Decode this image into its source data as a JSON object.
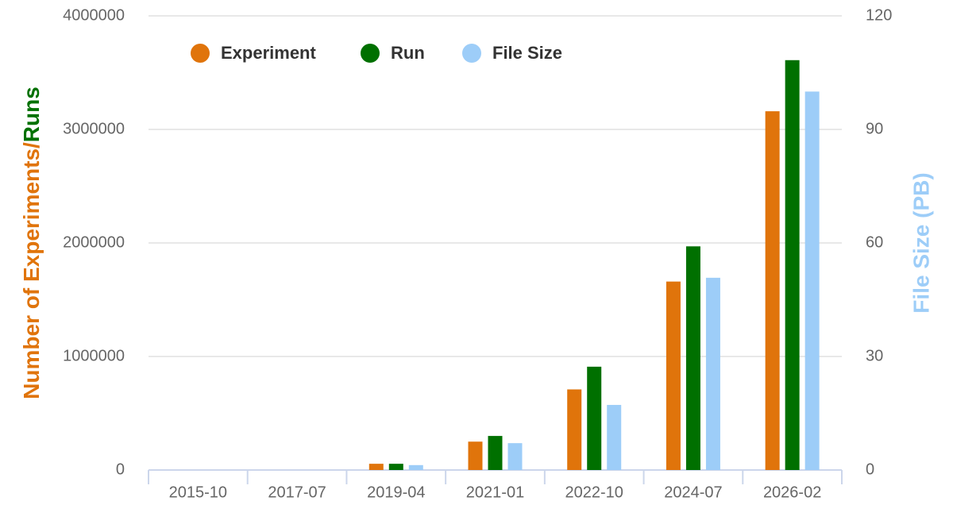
{
  "chart_data": {
    "type": "bar",
    "y_label": [
      "Number of Experiments/",
      "Runs"
    ],
    "y2_label": "File Size (PB)",
    "categories": [
      "2015-10",
      "2017-07",
      "2019-04",
      "2021-01",
      "2022-10",
      "2024-07",
      "2026-02"
    ],
    "series": [
      {
        "name": "Experiment",
        "color": "#e0740b",
        "values": [
          0,
          0,
          55000,
          250000,
          710000,
          1660000,
          3160000
        ]
      },
      {
        "name": "Run",
        "color": "#007000",
        "values": [
          0,
          0,
          55000,
          300000,
          910000,
          1970000,
          3610000
        ]
      },
      {
        "name": "File Size",
        "color": "#9dcdf8",
        "axis": "y2",
        "values": [
          0,
          0,
          1.3,
          7.1,
          17.2,
          50.8,
          100
        ]
      }
    ],
    "ylim": [
      0,
      4000000
    ],
    "yticks": [
      0,
      1000000,
      2000000,
      3000000,
      4000000
    ],
    "y2lim": [
      0,
      120
    ],
    "y2ticks": [
      0,
      30,
      60,
      90,
      120
    ],
    "grid": true,
    "legend": "top-left"
  }
}
